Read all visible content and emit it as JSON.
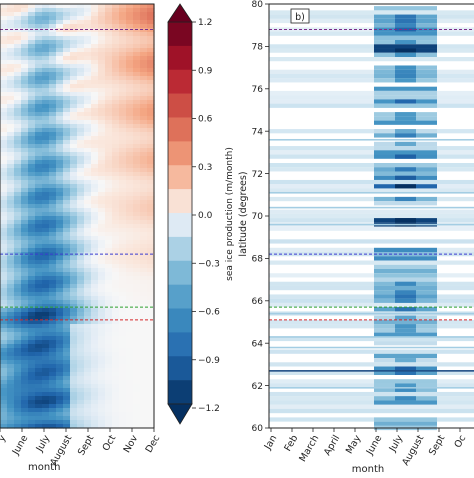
{
  "chart_data": [
    {
      "type": "heatmap",
      "panel_label": "",
      "xlabel": "month",
      "ylabel": "",
      "x_tick_labels": [
        "y",
        "June",
        "July",
        "August",
        "Sept",
        "Oct",
        "Nov",
        "Dec"
      ],
      "colorbar": {
        "label": "sea ice production (m/month)",
        "ticks": [
          "1.2",
          "0.9",
          "0.6",
          "0.3",
          "0.0",
          "−0.3",
          "−0.6",
          "−0.9",
          "−1.2"
        ],
        "range": [
          -1.2,
          1.2
        ],
        "extend": "both",
        "colormap": "RdBu_r"
      },
      "reference_lines": [
        {
          "latitude": 78.8,
          "color": "#7b2d8b"
        },
        {
          "latitude": 68.2,
          "color": "#3a3acf"
        },
        {
          "latitude": 65.7,
          "color": "#2ca02c"
        },
        {
          "latitude": 65.1,
          "color": "#d62728"
        }
      ]
    },
    {
      "type": "heatmap",
      "panel_label": "b)",
      "xlabel": "month",
      "ylabel": "latitude (degrees)",
      "ylim": [
        60,
        80
      ],
      "y_ticks": [
        "80",
        "78",
        "76",
        "74",
        "72",
        "70",
        "68",
        "66",
        "64",
        "62",
        "60"
      ],
      "x_tick_labels": [
        "Jan",
        "Feb",
        "March",
        "April",
        "May",
        "June",
        "July",
        "August",
        "Sept",
        "Oc"
      ],
      "reference_lines": [
        {
          "latitude": 78.8,
          "color": "#7b2d8b"
        },
        {
          "latitude": 68.2,
          "color": "#3a3acf"
        },
        {
          "latitude": 65.7,
          "color": "#2ca02c"
        },
        {
          "latitude": 65.1,
          "color": "#d62728"
        }
      ]
    }
  ],
  "colors": {
    "strong_negative": "#08306b",
    "moderate_negative": "#3f7fbf",
    "weak_negative": "#c6dbef",
    "neutral": "#f7f7f7",
    "weak_positive": "#fbd0b9",
    "moderate_positive": "#ef8a62",
    "strong_positive": "#67001f"
  }
}
